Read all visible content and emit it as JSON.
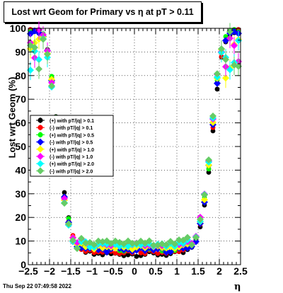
{
  "title": "Lost wrt Geom for Primary vs   η at pT > 0.11",
  "footer": "Thu Sep 22 07:49:58 2022",
  "chart_data": {
    "type": "scatter",
    "title": "Lost wrt Geom for Primary vs   η at pT > 0.11",
    "xlabel": "η",
    "ylabel": "Lost wrt Geom (%)",
    "xlim": [
      -2.5,
      2.5
    ],
    "ylim": [
      0,
      100
    ],
    "x_ticks": [
      "−2.5",
      "−2",
      "−1.5",
      "−1",
      "−0.5",
      "0",
      "0.5",
      "1",
      "1.5",
      "2",
      "2.5"
    ],
    "y_ticks": [
      "0",
      "10",
      "20",
      "30",
      "40",
      "50",
      "60",
      "70",
      "80",
      "90",
      "100"
    ],
    "grid": true,
    "legend_position": "left",
    "series": [
      {
        "name": "(+) with pT/|q| > 0.1",
        "color": "#000000",
        "marker": "circle"
      },
      {
        "name": "(-) with pT/|q| > 0.1",
        "color": "#ff0000",
        "marker": "circle"
      },
      {
        "name": "(+) with pT/|q| > 0.5",
        "color": "#00ff00",
        "marker": "circle"
      },
      {
        "name": "(-) with pT/|q| > 0.5",
        "color": "#0000ff",
        "marker": "diamond"
      },
      {
        "name": "(+) with pT/|q| > 1.0",
        "color": "#ffff00",
        "marker": "diamond"
      },
      {
        "name": "(-) with pT/|q| > 1.0",
        "color": "#ff00ff",
        "marker": "diamond"
      },
      {
        "name": "(+) with pT/|q| > 2.0",
        "color": "#00ffff",
        "marker": "diamond"
      },
      {
        "name": "(-) with pT/|q| > 2.0",
        "color": "#66cc66",
        "marker": "diamond"
      }
    ],
    "curve_points": [
      [
        -2.48,
        99
      ],
      [
        -2.4,
        99
      ],
      [
        -2.3,
        99
      ],
      [
        -2.2,
        98
      ],
      [
        -2.12,
        95
      ],
      [
        -2.05,
        90
      ],
      [
        -2.0,
        85
      ],
      [
        -1.95,
        78
      ],
      [
        -1.9,
        70
      ],
      [
        -1.85,
        60
      ],
      [
        -1.8,
        50
      ],
      [
        -1.75,
        42
      ],
      [
        -1.7,
        34
      ],
      [
        -1.65,
        28
      ],
      [
        -1.6,
        23
      ],
      [
        -1.55,
        18
      ],
      [
        -1.5,
        14
      ],
      [
        -1.45,
        11
      ],
      [
        -1.4,
        9
      ],
      [
        -1.3,
        7
      ],
      [
        -1.2,
        6
      ],
      [
        -1.0,
        5
      ],
      [
        -0.5,
        5
      ],
      [
        0.0,
        5
      ],
      [
        0.5,
        5
      ],
      [
        1.0,
        5
      ],
      [
        1.2,
        6
      ],
      [
        1.3,
        7
      ],
      [
        1.4,
        9
      ],
      [
        1.45,
        11
      ],
      [
        1.5,
        14
      ],
      [
        1.55,
        18
      ],
      [
        1.6,
        23
      ],
      [
        1.65,
        28
      ],
      [
        1.7,
        34
      ],
      [
        1.75,
        42
      ],
      [
        1.8,
        50
      ],
      [
        1.85,
        60
      ],
      [
        1.9,
        70
      ],
      [
        1.95,
        78
      ],
      [
        2.0,
        85
      ],
      [
        2.05,
        90
      ],
      [
        2.12,
        95
      ],
      [
        2.2,
        98
      ],
      [
        2.3,
        99
      ],
      [
        2.4,
        99
      ],
      [
        2.48,
        99
      ]
    ]
  }
}
